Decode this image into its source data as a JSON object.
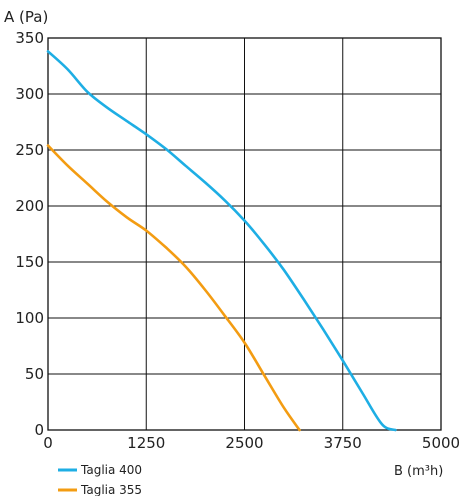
{
  "chart_data": {
    "type": "line",
    "title": "",
    "ylabel": "A (Pa)",
    "xlabel": "B (m³h)",
    "xlim": [
      0,
      5000
    ],
    "ylim": [
      0,
      350
    ],
    "x_ticks": [
      "0",
      "1250",
      "2500",
      "3750",
      "5000"
    ],
    "y_ticks": [
      "0",
      "50",
      "100",
      "150",
      "200",
      "250",
      "300",
      "350"
    ],
    "x_tick_values": [
      0,
      1250,
      2500,
      3750,
      5000
    ],
    "y_tick_values": [
      0,
      50,
      100,
      150,
      200,
      250,
      300,
      350
    ],
    "grid": true,
    "legend_position": "bottom-left",
    "series": [
      {
        "name": "Taglia 400",
        "color": "#1eaee4",
        "points": [
          [
            0,
            338
          ],
          [
            250,
            322
          ],
          [
            500,
            302
          ],
          [
            750,
            288
          ],
          [
            1000,
            276
          ],
          [
            1250,
            264
          ],
          [
            1500,
            251
          ],
          [
            1750,
            236
          ],
          [
            2000,
            221
          ],
          [
            2250,
            205
          ],
          [
            2500,
            187
          ],
          [
            2750,
            166
          ],
          [
            3000,
            143
          ],
          [
            3250,
            117
          ],
          [
            3500,
            90
          ],
          [
            3750,
            62
          ],
          [
            4000,
            33
          ],
          [
            4250,
            5
          ],
          [
            4420,
            0
          ]
        ]
      },
      {
        "name": "Taglia 355",
        "color": "#f39c12",
        "points": [
          [
            0,
            254
          ],
          [
            250,
            236
          ],
          [
            500,
            220
          ],
          [
            750,
            204
          ],
          [
            1000,
            190
          ],
          [
            1250,
            178
          ],
          [
            1500,
            163
          ],
          [
            1750,
            146
          ],
          [
            2000,
            125
          ],
          [
            2250,
            102
          ],
          [
            2500,
            78
          ],
          [
            2750,
            49
          ],
          [
            3000,
            20
          ],
          [
            3200,
            0
          ]
        ]
      }
    ]
  }
}
